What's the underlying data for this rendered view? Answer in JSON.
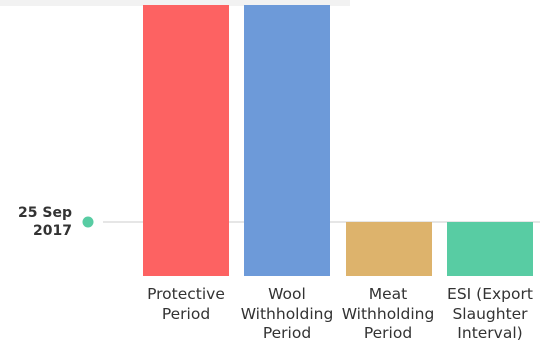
{
  "chart_data": {
    "type": "bar",
    "categories": [
      "Protective\nPeriod",
      "Wool\nWithholding\nPeriod",
      "Meat\nWithholding\nPeriod",
      "ESI (Export\nSlaughter\nInterval)"
    ],
    "values": [
      62,
      62,
      0,
      0
    ],
    "baseline_date_label": {
      "day_month": "25 Sep",
      "year": "2017"
    },
    "colors": {
      "bars": [
        "#fd6262",
        "#6d9ad9",
        "#ddb36c",
        "#58cca3"
      ],
      "marker": "#58cca3",
      "baseline": "#cccccc",
      "top_bar": "#f2f2f2"
    },
    "grid": false,
    "legend": "none"
  }
}
